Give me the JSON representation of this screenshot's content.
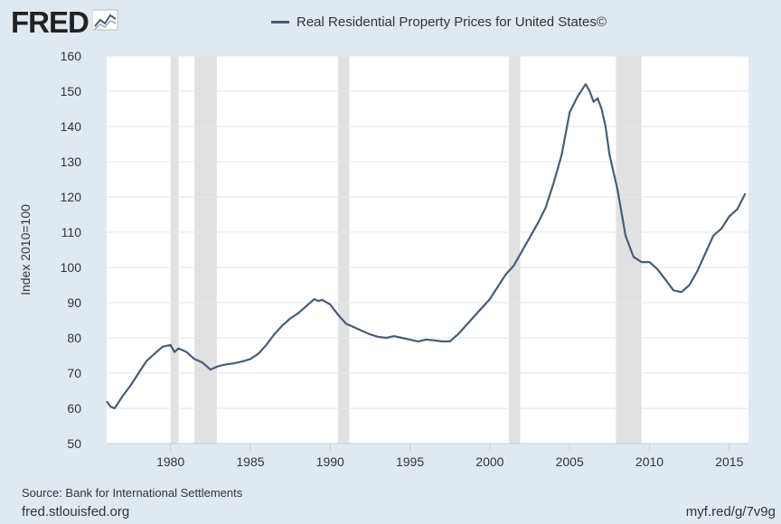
{
  "header": {
    "logo_text": "FRED",
    "logo_icon": "line-graph-icon"
  },
  "chart_data": {
    "type": "line",
    "title": "",
    "legend_label": "Real Residential Property Prices for United States©",
    "xlabel": "",
    "ylabel": "Index 2010=100",
    "xlim": [
      1976.0,
      2016.2
    ],
    "ylim": [
      50,
      160
    ],
    "y_ticks": [
      50,
      60,
      70,
      80,
      90,
      100,
      110,
      120,
      130,
      140,
      150,
      160
    ],
    "x_ticks": [
      1980,
      1985,
      1990,
      1995,
      2000,
      2005,
      2010,
      2015
    ],
    "grid": "horizontal",
    "line_color": "#4a5c73",
    "recession_color": "#e1e1e1",
    "recessions": [
      [
        1980.0,
        1980.5
      ],
      [
        1981.5,
        1982.9
      ],
      [
        1990.5,
        1991.2
      ],
      [
        2001.2,
        2001.9
      ],
      [
        2007.9,
        2009.5
      ]
    ],
    "series": [
      {
        "x": [
          1976.0,
          1976.25,
          1976.5,
          1977.0,
          1977.5,
          1978.0,
          1978.5,
          1979.0,
          1979.5,
          1980.0,
          1980.25,
          1980.5,
          1980.75,
          1981.0,
          1981.5,
          1982.0,
          1982.5,
          1982.75,
          1983.0,
          1983.5,
          1984.0,
          1984.5,
          1985.0,
          1985.5,
          1986.0,
          1986.5,
          1987.0,
          1987.5,
          1988.0,
          1988.5,
          1989.0,
          1989.25,
          1989.5,
          1990.0,
          1990.5,
          1991.0,
          1991.5,
          1992.0,
          1992.5,
          1993.0,
          1993.5,
          1994.0,
          1994.5,
          1995.0,
          1995.5,
          1996.0,
          1996.5,
          1997.0,
          1997.5,
          1998.0,
          1998.5,
          1999.0,
          1999.5,
          2000.0,
          2000.5,
          2001.0,
          2001.5,
          2002.0,
          2002.5,
          2003.0,
          2003.5,
          2004.0,
          2004.5,
          2005.0,
          2005.5,
          2006.0,
          2006.25,
          2006.5,
          2006.75,
          2007.0,
          2007.25,
          2007.5,
          2008.0,
          2008.5,
          2009.0,
          2009.5,
          2010.0,
          2010.5,
          2011.0,
          2011.5,
          2012.0,
          2012.5,
          2013.0,
          2013.5,
          2014.0,
          2014.5,
          2015.0,
          2015.5,
          2016.0
        ],
        "values": [
          62.0,
          60.5,
          60.0,
          63.5,
          66.5,
          70.0,
          73.5,
          75.5,
          77.5,
          78.0,
          76.0,
          77.0,
          76.5,
          76.0,
          74.0,
          73.0,
          71.0,
          71.5,
          72.0,
          72.5,
          72.8,
          73.3,
          74.0,
          75.5,
          78.0,
          81.0,
          83.5,
          85.5,
          87.0,
          89.0,
          91.0,
          90.5,
          90.8,
          89.5,
          86.5,
          84.0,
          83.0,
          82.0,
          81.0,
          80.3,
          80.0,
          80.5,
          80.0,
          79.5,
          79.0,
          79.5,
          79.3,
          79.0,
          79.0,
          81.0,
          83.5,
          86.0,
          88.5,
          91.0,
          94.5,
          98.0,
          100.5,
          104.5,
          108.5,
          112.5,
          117.0,
          124.0,
          132.0,
          144.0,
          148.5,
          152.0,
          150.0,
          147.0,
          148.0,
          145.0,
          140.0,
          132.0,
          122.0,
          109.0,
          103.0,
          101.5,
          101.5,
          99.5,
          96.5,
          93.5,
          93.0,
          95.0,
          99.0,
          104.0,
          109.0,
          111.0,
          114.5,
          116.5,
          121.0
        ]
      }
    ]
  },
  "footer": {
    "source": "Source: Bank for International Settlements",
    "site": "fred.stlouisfed.org",
    "short_url": "myf.red/g/7v9g"
  }
}
